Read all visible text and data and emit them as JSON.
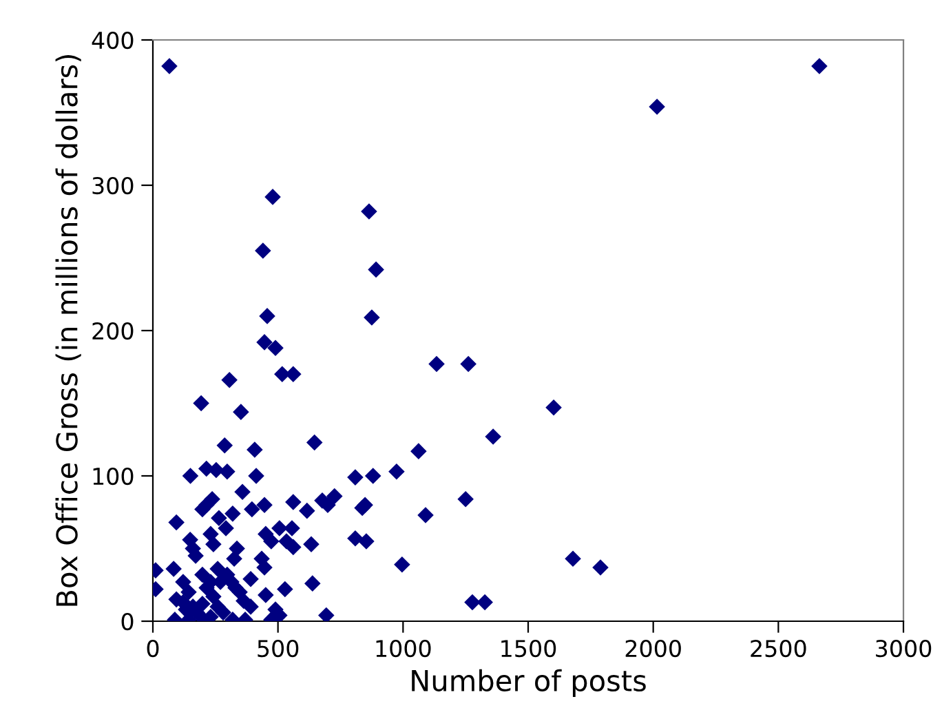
{
  "chart_data": {
    "type": "scatter",
    "xlabel": "Number of posts",
    "ylabel": "Box Office Gross (in millions of dollars)",
    "x": [
      66,
      2664,
      2015,
      479,
      864,
      440,
      892,
      457,
      875,
      446,
      490,
      517,
      561,
      306,
      193,
      352,
      1602,
      1134,
      1261,
      1360,
      1062,
      974,
      1250,
      1090,
      996,
      1679,
      1789,
      1277,
      1327,
      646,
      287,
      407,
      150,
      214,
      253,
      297,
      413,
      809,
      880,
      358,
      237,
      198,
      214,
      319,
      264,
      94,
      292,
      396,
      446,
      561,
      616,
      677,
      726,
      699,
      837,
      848,
      451,
      473,
      506,
      556,
      534,
      561,
      633,
      809,
      853,
      231,
      242,
      149,
      160,
      171,
      336,
      325,
      435,
      446,
      11,
      83,
      11,
      198,
      259,
      297,
      314,
      231,
      270,
      391,
      330,
      121,
      143,
      121,
      94,
      215,
      242,
      259,
      198,
      160,
      176,
      132,
      88,
      143,
      204,
      231,
      347,
      363,
      451,
      391,
      528,
      638,
      281,
      319,
      369,
      490,
      506,
      473,
      693
    ],
    "values": [
      382,
      382,
      354,
      292,
      282,
      255,
      242,
      210,
      209,
      192,
      188,
      170,
      170,
      166,
      150,
      144,
      147,
      177,
      177,
      127,
      117,
      103,
      84,
      73,
      39,
      43,
      37,
      13,
      13,
      123,
      121,
      118,
      100,
      105,
      104,
      103,
      100,
      99,
      100,
      89,
      84,
      77,
      80,
      74,
      71,
      68,
      64,
      77,
      80,
      82,
      76,
      83,
      86,
      80,
      78,
      80,
      60,
      55,
      64,
      64,
      55,
      51,
      53,
      57,
      55,
      60,
      53,
      56,
      50,
      45,
      50,
      43,
      43,
      37,
      35,
      36,
      22,
      32,
      36,
      32,
      27,
      27,
      27,
      29,
      23,
      27,
      20,
      13,
      15,
      23,
      17,
      10,
      12,
      10,
      6,
      8,
      1,
      1,
      1,
      3,
      20,
      14,
      18,
      10,
      22,
      26,
      6,
      1,
      1,
      8,
      4,
      1,
      4
    ],
    "color": "#000080",
    "marker": "diamond",
    "xlim": [
      0,
      3000
    ],
    "ylim": [
      0,
      400
    ],
    "xticks": [
      0,
      500,
      1000,
      1500,
      2000,
      2500,
      3000
    ],
    "yticks": [
      0,
      100,
      200,
      300,
      400
    ],
    "grid": false
  }
}
